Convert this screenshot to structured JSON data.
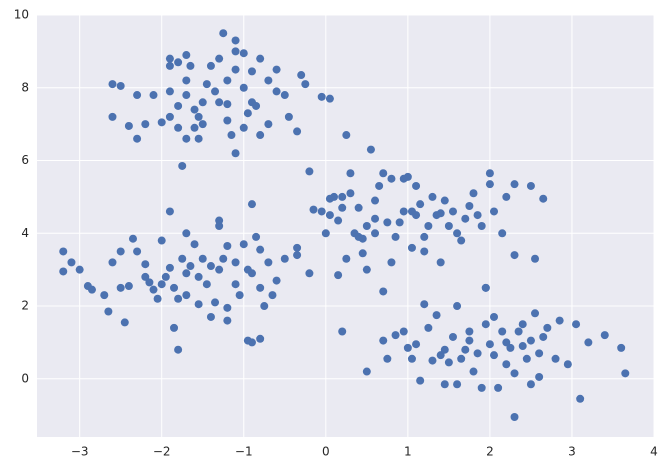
{
  "chart_data": {
    "type": "scatter",
    "color": "#4c72b0",
    "grid": true,
    "xlim": [
      -3.52,
      4
    ],
    "ylim": [
      -1.6,
      10
    ],
    "xticks": [
      {
        "value": -3,
        "label": "−3"
      },
      {
        "value": -2,
        "label": "−2"
      },
      {
        "value": -1,
        "label": "−1"
      },
      0,
      1,
      2,
      3,
      4
    ],
    "yticks": [
      0,
      2,
      4,
      6,
      8,
      10
    ],
    "x": [
      -2.6,
      -2.5,
      -2.3,
      -2.1,
      -2.6,
      -2.4,
      -2.2,
      -2.3,
      -2.0,
      -1.9,
      -1.9,
      -1.8,
      -1.7,
      -1.65,
      -1.9,
      -1.8,
      -1.7,
      -1.7,
      -1.6,
      -1.55,
      -1.5,
      -1.6,
      -1.7,
      -1.55,
      -1.75,
      -1.9,
      -1.8,
      -1.5,
      -1.4,
      -1.3,
      -1.25,
      -1.1,
      -1.1,
      -1.0,
      -1.2,
      -1.1,
      -1.0,
      -0.9,
      -0.8,
      -0.7,
      -0.6,
      -0.5,
      -1.3,
      -1.2,
      -1.15,
      -1.0,
      -0.95,
      -0.85,
      -0.8,
      -0.9,
      -1.1,
      -0.35,
      -0.3,
      -0.25,
      -0.05,
      0.05,
      -0.7,
      -0.45,
      -1.35,
      -1.45,
      -1.2,
      -0.6,
      -3.2,
      -3.2,
      -3.1,
      -3.0,
      -2.9,
      -2.85,
      -2.7,
      -2.65,
      -2.5,
      -2.45,
      -2.4,
      -2.6,
      -2.5,
      -2.35,
      -2.3,
      -2.2,
      -2.2,
      -2.15,
      -2.1,
      -2.05,
      -2.0,
      -1.95,
      -1.9,
      -1.9,
      -1.85,
      -1.8,
      -1.85,
      -1.8,
      -1.7,
      -1.7,
      -1.65,
      -1.7,
      -1.6,
      -1.5,
      -1.55,
      -1.45,
      -1.4,
      -1.35,
      -1.3,
      -1.3,
      -1.25,
      -1.2,
      -1.2,
      -1.1,
      -1.1,
      -1.0,
      -0.95,
      -0.9,
      -0.9,
      -0.95,
      -0.9,
      -0.8,
      -0.85,
      -0.8,
      -0.7,
      -0.75,
      -0.65,
      -0.5,
      -0.35,
      -0.35,
      -0.2,
      -1.2,
      -1.05,
      -0.8,
      -1.55,
      -2.0,
      -1.4,
      -1.75,
      -0.6,
      -1.3,
      -0.2,
      -0.15,
      -0.05,
      0.0,
      0.05,
      0.05,
      0.1,
      0.15,
      0.2,
      0.2,
      0.25,
      0.3,
      0.3,
      0.35,
      0.4,
      0.4,
      0.45,
      0.5,
      0.5,
      0.55,
      0.6,
      0.6,
      0.65,
      0.7,
      0.7,
      0.75,
      0.8,
      0.85,
      0.9,
      0.95,
      0.95,
      1.0,
      1.05,
      1.05,
      1.1,
      1.15,
      1.2,
      1.25,
      1.3,
      1.35,
      1.4,
      1.45,
      1.5,
      1.55,
      1.6,
      1.65,
      1.7,
      1.75,
      1.8,
      1.9,
      1.95,
      2.0,
      2.0,
      2.05,
      2.15,
      2.2,
      2.3,
      2.3,
      2.5,
      2.55,
      2.65,
      0.25,
      0.45,
      1.2,
      0.8,
      1.1,
      0.15,
      1.85,
      0.6,
      1.4,
      0.2,
      0.5,
      0.7,
      0.75,
      0.85,
      0.95,
      1.05,
      1.1,
      1.15,
      1.2,
      1.25,
      1.3,
      1.35,
      1.4,
      1.45,
      1.5,
      1.55,
      1.6,
      1.6,
      1.65,
      1.7,
      1.75,
      1.75,
      1.8,
      1.85,
      1.9,
      1.95,
      1.95,
      2.0,
      2.05,
      2.05,
      2.1,
      2.15,
      2.2,
      2.25,
      2.3,
      2.35,
      2.3,
      2.4,
      2.45,
      2.5,
      2.5,
      2.55,
      2.6,
      2.6,
      2.65,
      2.7,
      2.8,
      2.85,
      2.95,
      3.05,
      3.1,
      3.2,
      3.4,
      3.6,
      3.65,
      2.2,
      1.45,
      2.4,
      1.0
    ],
    "values": [
      8.1,
      8.05,
      7.8,
      7.8,
      7.2,
      6.95,
      7.0,
      6.6,
      7.05,
      8.8,
      8.6,
      8.7,
      8.9,
      8.6,
      7.9,
      7.5,
      7.8,
      8.2,
      7.4,
      7.2,
      7.0,
      6.9,
      6.6,
      6.6,
      5.85,
      7.2,
      6.9,
      7.6,
      8.6,
      8.8,
      9.5,
      9.3,
      9.0,
      8.95,
      8.2,
      8.5,
      8.0,
      8.45,
      8.8,
      8.2,
      7.9,
      7.8,
      7.6,
      7.1,
      6.7,
      6.9,
      7.3,
      7.5,
      6.7,
      7.6,
      6.2,
      6.8,
      8.35,
      8.1,
      7.75,
      7.7,
      7.0,
      7.2,
      7.9,
      8.1,
      7.55,
      8.5,
      3.5,
      2.95,
      3.2,
      3.0,
      2.55,
      2.45,
      2.3,
      1.85,
      2.5,
      1.55,
      2.55,
      3.2,
      3.5,
      3.85,
      3.5,
      3.15,
      2.8,
      2.65,
      2.45,
      2.2,
      3.8,
      2.8,
      3.05,
      4.6,
      2.5,
      2.2,
      1.4,
      0.8,
      2.3,
      2.9,
      3.1,
      4.0,
      3.7,
      3.3,
      2.8,
      2.6,
      1.7,
      2.1,
      3.0,
      4.2,
      3.3,
      1.95,
      1.6,
      2.6,
      3.2,
      3.7,
      3.0,
      2.9,
      4.8,
      1.05,
      1.0,
      1.1,
      3.9,
      2.5,
      3.2,
      2.0,
      2.3,
      3.3,
      3.6,
      3.4,
      2.9,
      3.65,
      2.3,
      3.55,
      2.05,
      2.6,
      3.1,
      3.3,
      2.7,
      4.35,
      5.7,
      4.65,
      4.6,
      4.0,
      4.5,
      4.95,
      5.0,
      4.35,
      4.7,
      5.0,
      6.7,
      5.1,
      5.65,
      4.0,
      4.7,
      3.9,
      3.45,
      3.0,
      4.2,
      6.3,
      4.9,
      4.0,
      5.3,
      5.65,
      2.4,
      4.3,
      5.5,
      3.9,
      4.3,
      4.6,
      5.5,
      5.55,
      4.6,
      3.6,
      5.3,
      4.8,
      3.5,
      4.2,
      5.0,
      4.5,
      3.2,
      4.9,
      4.2,
      4.6,
      4.0,
      3.8,
      4.4,
      4.75,
      5.1,
      4.2,
      2.5,
      5.65,
      5.35,
      4.6,
      4.0,
      5.0,
      5.35,
      3.4,
      5.3,
      3.3,
      4.95,
      3.3,
      3.85,
      3.9,
      3.2,
      4.5,
      2.85,
      4.5,
      4.4,
      4.55,
      1.3,
      0.2,
      1.05,
      0.55,
      1.2,
      1.3,
      0.55,
      0.95,
      -0.05,
      2.05,
      1.4,
      0.5,
      1.75,
      0.65,
      -0.15,
      0.45,
      1.15,
      -0.15,
      2.0,
      0.55,
      0.8,
      1.3,
      1.05,
      0.2,
      0.7,
      -0.25,
      1.5,
      2.5,
      0.95,
      1.7,
      0.65,
      -0.25,
      1.3,
      0.4,
      0.85,
      0.15,
      1.3,
      -1.05,
      0.9,
      0.55,
      1.05,
      -0.15,
      1.8,
      0.7,
      0.05,
      1.15,
      1.4,
      0.55,
      1.6,
      0.4,
      1.5,
      -0.55,
      1.0,
      1.2,
      0.85,
      0.15,
      1.0,
      0.8,
      1.5,
      0.85
    ]
  }
}
